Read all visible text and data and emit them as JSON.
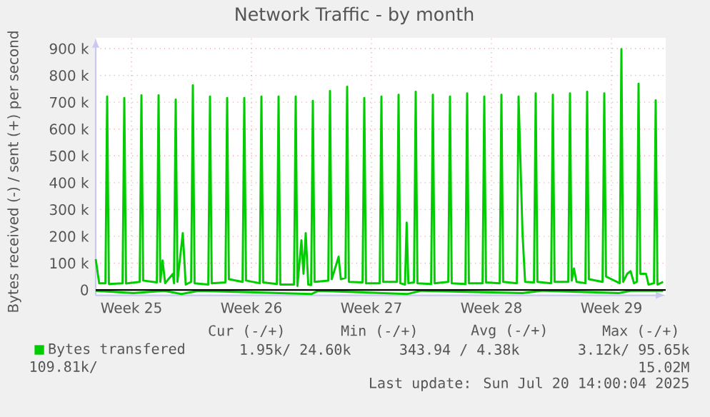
{
  "chart_data": {
    "type": "line",
    "title": "Network Traffic - by month",
    "ylabel": "Bytes received (-) / sent (+) per second",
    "xlim": [
      "2025-06-18T10:00",
      "2025-07-21T16:00"
    ],
    "ylim": [
      -20000,
      940000
    ],
    "xticks": [
      {
        "value": "2025-06-20T12:00",
        "label": "Week 25"
      },
      {
        "value": "2025-06-27T12:00",
        "label": "Week 26"
      },
      {
        "value": "2025-07-04T12:00",
        "label": "Week 27"
      },
      {
        "value": "2025-07-11T12:00",
        "label": "Week 28"
      },
      {
        "value": "2025-07-18T12:00",
        "label": "Week 29"
      }
    ],
    "yticks": [
      0,
      {
        "value": 100000,
        "label": "100 k"
      },
      {
        "value": 200000,
        "label": "200 k"
      },
      {
        "value": 300000,
        "label": "300 k"
      },
      {
        "value": 400000,
        "label": "400 k"
      },
      {
        "value": 500000,
        "label": "500 k"
      },
      {
        "value": 600000,
        "label": "600 k"
      },
      {
        "value": 700000,
        "label": "700 k"
      },
      {
        "value": 800000,
        "label": "800 k"
      },
      {
        "value": 900000,
        "label": "900 k"
      }
    ],
    "grid": true,
    "legend": "bottom",
    "ref_lines": [
      {
        "axis": "y",
        "value": 0,
        "color": "#000000"
      }
    ],
    "series": [
      {
        "name": "Bytes transfered",
        "color": "#00cc00",
        "x": [
          "2025-06-18T10:00",
          "2025-06-18T14:50",
          "2025-06-18T23:35",
          "2025-06-19T02:00",
          "2025-06-19T04:25",
          "2025-06-19T23:35",
          "2025-06-20T02:00",
          "2025-06-20T04:25",
          "2025-06-20T23:35",
          "2025-06-21T02:00",
          "2025-06-21T04:25",
          "2025-06-21T23:35",
          "2025-06-22T02:00",
          "2025-06-22T04:25",
          "2025-06-22T07:35",
          "2025-06-22T11:10",
          "2025-06-22T22:00",
          "2025-06-22T23:35",
          "2025-06-23T02:00",
          "2025-06-23T04:25",
          "2025-06-23T11:55",
          "2025-06-23T16:00",
          "2025-06-23T23:35",
          "2025-06-24T02:00",
          "2025-06-24T04:25",
          "2025-06-24T23:35",
          "2025-06-25T02:00",
          "2025-06-25T04:25",
          "2025-06-25T23:35",
          "2025-06-26T02:00",
          "2025-06-26T04:25",
          "2025-06-26T23:35",
          "2025-06-27T02:00",
          "2025-06-27T04:25",
          "2025-06-27T23:35",
          "2025-06-28T02:00",
          "2025-06-28T04:25",
          "2025-06-28T23:35",
          "2025-06-29T02:00",
          "2025-06-29T04:25",
          "2025-06-29T23:35",
          "2025-06-30T02:00",
          "2025-06-30T04:25",
          "2025-06-30T10:00",
          "2025-06-30T12:55",
          "2025-06-30T16:00",
          "2025-06-30T19:35",
          "2025-06-30T23:35",
          "2025-07-01T02:00",
          "2025-07-01T04:25",
          "2025-07-01T23:35",
          "2025-07-02T02:00",
          "2025-07-02T04:25",
          "2025-07-02T14:05",
          "2025-07-02T17:10",
          "2025-07-02T23:35",
          "2025-07-03T02:00",
          "2025-07-03T04:25",
          "2025-07-03T23:35",
          "2025-07-04T02:00",
          "2025-07-04T04:25",
          "2025-07-04T23:35",
          "2025-07-05T02:00",
          "2025-07-05T04:25",
          "2025-07-05T23:35",
          "2025-07-06T02:00",
          "2025-07-06T04:25",
          "2025-07-06T11:00",
          "2025-07-06T13:20",
          "2025-07-06T15:45",
          "2025-07-06T23:35",
          "2025-07-07T02:00",
          "2025-07-07T04:25",
          "2025-07-07T23:35",
          "2025-07-08T02:00",
          "2025-07-08T04:25",
          "2025-07-08T23:35",
          "2025-07-09T02:00",
          "2025-07-09T04:25",
          "2025-07-09T23:35",
          "2025-07-10T02:00",
          "2025-07-10T04:25",
          "2025-07-10T23:35",
          "2025-07-11T02:00",
          "2025-07-11T04:25",
          "2025-07-11T23:35",
          "2025-07-12T02:00",
          "2025-07-12T04:25",
          "2025-07-12T23:35",
          "2025-07-13T02:00",
          "2025-07-13T07:35",
          "2025-07-13T11:10",
          "2025-07-13T23:35",
          "2025-07-14T02:00",
          "2025-07-14T04:25",
          "2025-07-14T23:35",
          "2025-07-15T02:00",
          "2025-07-15T04:25",
          "2025-07-15T23:35",
          "2025-07-16T02:00",
          "2025-07-16T04:25",
          "2025-07-16T07:35",
          "2025-07-16T11:10",
          "2025-07-16T23:35",
          "2025-07-17T02:00",
          "2025-07-17T04:25",
          "2025-07-17T23:35",
          "2025-07-18T02:00",
          "2025-07-18T04:25",
          "2025-07-18T23:35",
          "2025-07-19T02:00",
          "2025-07-19T04:25",
          "2025-07-19T10:00",
          "2025-07-19T14:50",
          "2025-07-19T19:35",
          "2025-07-19T23:35",
          "2025-07-20T02:00",
          "2025-07-20T04:25",
          "2025-07-20T12:25",
          "2025-07-20T16:00",
          "2025-07-20T23:35",
          "2025-07-21T02:00",
          "2025-07-21T04:25",
          "2025-07-21T12:25"
        ],
        "values": [
          115000,
          25000,
          25000,
          721000,
          22000,
          25000,
          716000,
          24000,
          30000,
          726000,
          35000,
          28000,
          726000,
          30000,
          110000,
          25000,
          60000,
          25000,
          710000,
          30000,
          212000,
          20000,
          30000,
          763000,
          25000,
          20000,
          721000,
          25000,
          28000,
          716000,
          40000,
          30000,
          716000,
          35000,
          25000,
          721000,
          28000,
          22000,
          721000,
          20000,
          20000,
          721000,
          15000,
          185000,
          60000,
          212000,
          20000,
          18000,
          705000,
          30000,
          35000,
          742000,
          40000,
          124000,
          40000,
          45000,
          758000,
          30000,
          28000,
          716000,
          25000,
          25000,
          721000,
          30000,
          30000,
          728000,
          25000,
          20000,
          251000,
          25000,
          28000,
          739000,
          25000,
          22000,
          728000,
          25000,
          30000,
          721000,
          25000,
          22000,
          733000,
          25000,
          25000,
          721000,
          28000,
          25000,
          728000,
          30000,
          25000,
          721000,
          208000,
          30000,
          28000,
          733000,
          30000,
          25000,
          728000,
          30000,
          30000,
          733000,
          35000,
          80000,
          30000,
          25000,
          739000,
          40000,
          30000,
          733000,
          50000,
          25000,
          898000,
          30000,
          60000,
          70000,
          25000,
          30000,
          769000,
          60000,
          60000,
          20000,
          25000,
          707000,
          20000,
          30000
        ]
      },
      {
        "color": "#00cc00",
        "x": [
          "2025-06-18T10:00",
          "2025-06-20T14:50",
          "2025-06-22T10:00",
          "2025-06-23T10:00",
          "2025-06-24T10:00",
          "2025-07-01T00:25",
          "2025-07-01T10:00",
          "2025-07-06T14:50",
          "2025-07-07T10:00",
          "2025-07-13T07:35",
          "2025-07-14T10:00",
          "2025-07-18T22:00",
          "2025-07-19T14:50",
          "2025-07-21T12:25"
        ],
        "values": [
          -3000,
          -12000,
          -3000,
          -15000,
          -3000,
          -15000,
          -3000,
          -15000,
          -3000,
          -12000,
          -3000,
          -12000,
          -3000,
          -3000
        ]
      }
    ],
    "annotations": [
      "Cur (-/+)",
      "Min (-/+)",
      "Avg (-/+)",
      "Max (-/+)",
      "1.95k/ 24.60k",
      "343.94 / 4.38k",
      "3.12k/ 95.65k",
      "109.81k/",
      "15.02M",
      "Last update: Sun Jul 20 14:00:04 2025"
    ]
  }
}
